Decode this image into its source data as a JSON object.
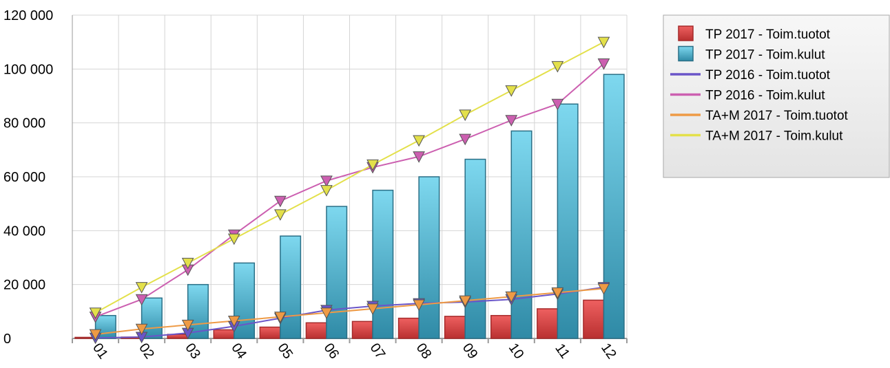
{
  "chart_data": {
    "type": "bar",
    "categories": [
      "01",
      "02",
      "03",
      "04",
      "05",
      "06",
      "07",
      "08",
      "09",
      "10",
      "11",
      "12"
    ],
    "ylim": [
      0,
      120000
    ],
    "yticks": [
      0,
      20000,
      40000,
      60000,
      80000,
      100000,
      120000
    ],
    "ytick_labels": [
      "0",
      "20 000",
      "40 000",
      "60 000",
      "80 000",
      "100 000",
      "120 000"
    ],
    "grid": true,
    "legend_position": "top-right",
    "series": [
      {
        "name": "TP 2017  - Toim.tuotot",
        "kind": "bar",
        "color": "#d94a4a",
        "values": [
          400,
          500,
          1500,
          3200,
          4200,
          5800,
          6300,
          7500,
          8200,
          8500,
          11000,
          14200
        ]
      },
      {
        "name": "TP 2017  - Toim.kulut",
        "kind": "bar",
        "color": "#4bb3cf",
        "values": [
          8500,
          15000,
          20000,
          28000,
          38000,
          49000,
          55000,
          60000,
          66500,
          77000,
          87000,
          98000
        ]
      },
      {
        "name": "TP 2016 - Toim.tuotot",
        "kind": "line",
        "color": "#6a55c8",
        "values": [
          200,
          500,
          2000,
          4500,
          7500,
          10500,
          12000,
          13000,
          13500,
          14500,
          16500,
          19000
        ]
      },
      {
        "name": "TP 2016 - Toim.kulut",
        "kind": "line",
        "color": "#cc5fb0",
        "values": [
          8000,
          14500,
          25500,
          38500,
          51000,
          58500,
          63500,
          67500,
          74000,
          81000,
          87000,
          102000
        ]
      },
      {
        "name": "TA+M 2017 - Toim.tuotot",
        "kind": "line",
        "color": "#ee9a45",
        "values": [
          1500,
          3500,
          5000,
          6500,
          8000,
          9500,
          11000,
          12500,
          14000,
          15500,
          17000,
          18500
        ]
      },
      {
        "name": "TA+M 2017 - Toim.kulut",
        "kind": "line",
        "color": "#e3e04a",
        "values": [
          9500,
          19000,
          28000,
          37000,
          46000,
          55000,
          64500,
          73500,
          83000,
          92000,
          101000,
          110000
        ]
      }
    ]
  }
}
